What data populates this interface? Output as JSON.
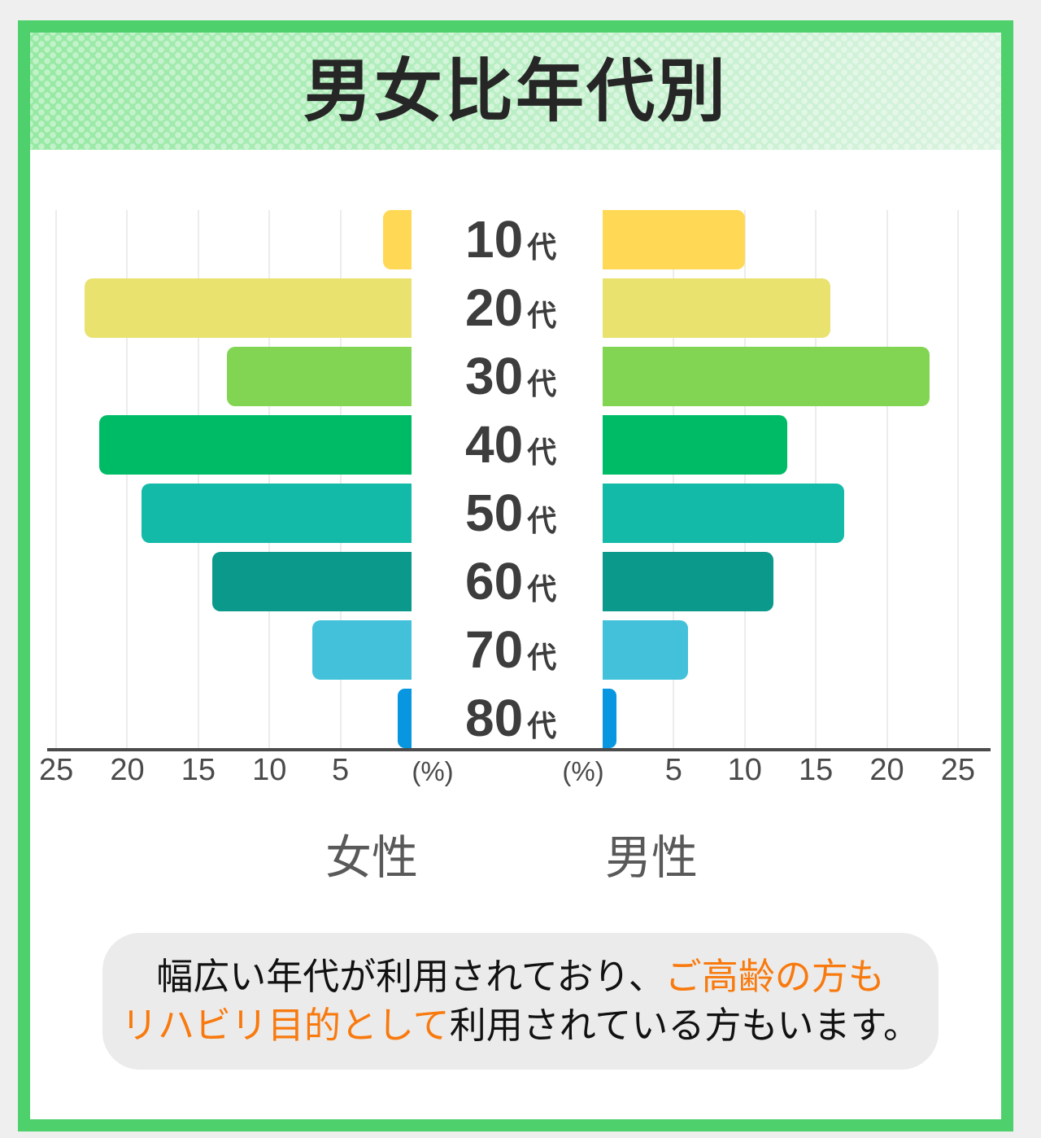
{
  "header": {
    "title": "男女比年代別"
  },
  "chart_data": {
    "type": "bar",
    "subtype": "population-pyramid",
    "title": "男女比年代別",
    "categories": [
      "10代",
      "20代",
      "30代",
      "40代",
      "50代",
      "60代",
      "70代",
      "80代"
    ],
    "category_numbers": [
      "10",
      "20",
      "30",
      "40",
      "50",
      "60",
      "70",
      "80"
    ],
    "category_suffix": "代",
    "series": [
      {
        "name": "女性",
        "side": "left",
        "values": [
          2,
          23,
          13,
          22,
          19,
          14,
          7,
          1
        ]
      },
      {
        "name": "男性",
        "side": "right",
        "values": [
          10,
          16,
          23,
          13,
          17,
          12,
          6,
          1
        ]
      }
    ],
    "unit": "%",
    "percent_label": "(%)",
    "axis_ticks": [
      5,
      10,
      15,
      20,
      25
    ],
    "xlim": [
      0,
      25
    ],
    "bar_colors": [
      "#FFD955",
      "#E9E26E",
      "#82D553",
      "#00BB66",
      "#14BAA8",
      "#0A998A",
      "#43C1DB",
      "#0896E0"
    ],
    "grid": true,
    "legend_position": "bottom"
  },
  "note": {
    "lines": [
      {
        "segments": [
          {
            "text": "幅広い年代が利用されており、",
            "style": "default"
          },
          {
            "text": "ご高齢の方も",
            "style": "accent"
          }
        ]
      },
      {
        "segments": [
          {
            "text": "リハビリ目的として",
            "style": "accent"
          },
          {
            "text": "利用されている方もいます。",
            "style": "default"
          }
        ]
      }
    ]
  },
  "colors": {
    "accent_orange": "#F87A0E",
    "frame_green": "#4ED06C",
    "axis_line": "#4B4B4B",
    "grid_line": "#ECECEC",
    "text_dark": "#3D3D3D",
    "tick_text": "#4A4A4A",
    "legend_text": "#595959",
    "note_bg": "#EBEBEB",
    "page_bg": "#EFEFEF",
    "header_gradient_left": "#96E9A3",
    "header_gradient_right": "#DAF3E0"
  }
}
